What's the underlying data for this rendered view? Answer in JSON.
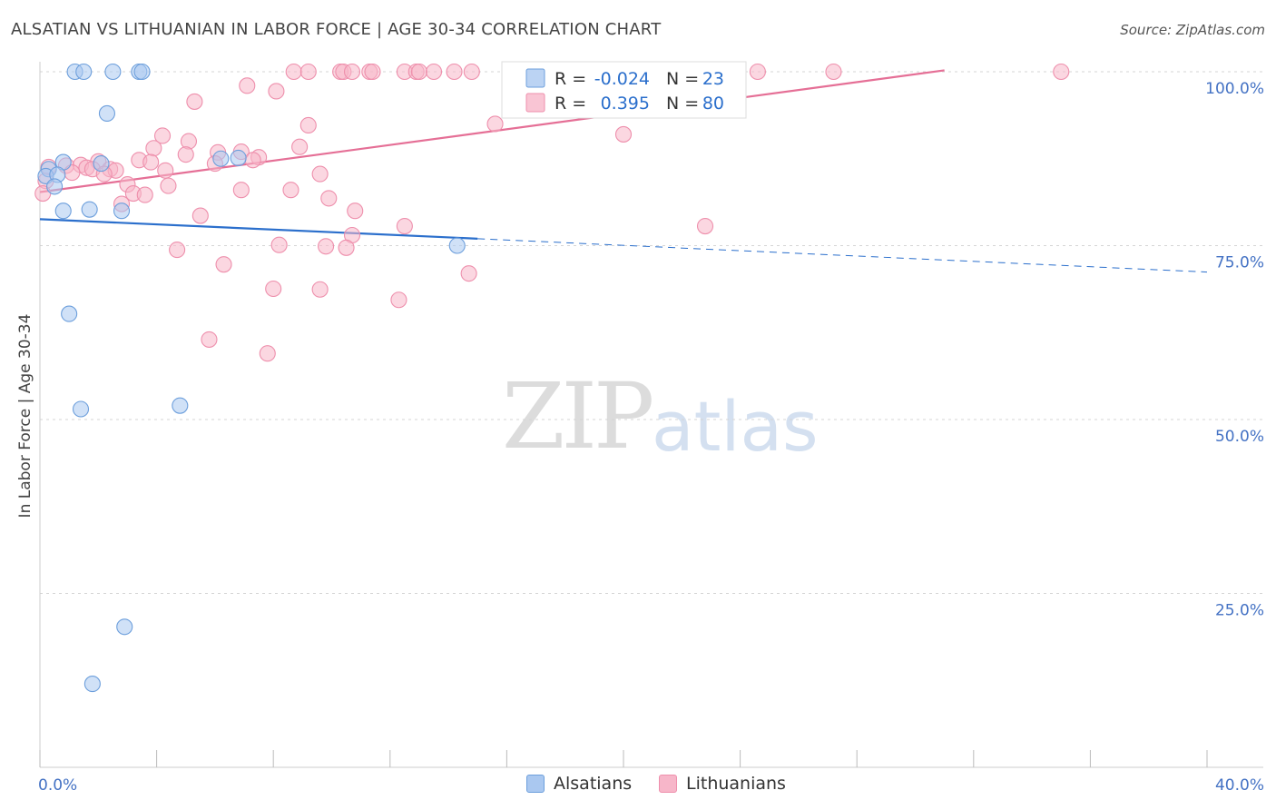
{
  "title": "ALSATIAN VS LITHUANIAN IN LABOR FORCE | AGE 30-34 CORRELATION CHART",
  "source": "Source: ZipAtlas.com",
  "watermark": {
    "zip": "ZIP",
    "atlas": "atlas"
  },
  "colors": {
    "blue_fill": "#aac8f0",
    "blue_stroke": "#6d9fdc",
    "blue_line": "#2b6fcc",
    "pink_fill": "#f7b6c9",
    "pink_stroke": "#ee8fac",
    "pink_line": "#e56f96",
    "tick_text": "#4472c4",
    "grid": "#d5d5d5"
  },
  "legend": {
    "rows": [
      {
        "r_label": "R =",
        "r_value": "-0.024",
        "n_label": "N =",
        "n_value": "23"
      },
      {
        "r_label": "R =",
        "r_value": "0.395",
        "n_label": "N =",
        "n_value": "80"
      }
    ]
  },
  "bottom_legend": {
    "alsatians": "Alsatians",
    "lithuanians": "Lithuanians"
  },
  "chart_data": {
    "type": "scatter",
    "title": "ALSATIAN VS LITHUANIAN IN LABOR FORCE | AGE 30-34 CORRELATION CHART",
    "xlabel": "",
    "ylabel": "In Labor Force | Age 30-34",
    "xlim": [
      0,
      40
    ],
    "ylim": [
      0,
      102
    ],
    "x_tick_labels": [
      "0.0%",
      "40.0%"
    ],
    "y_ticks": [
      25,
      50,
      75,
      100
    ],
    "y_tick_labels": [
      "25.0%",
      "50.0%",
      "75.0%",
      "100.0%"
    ],
    "grid": true,
    "series": [
      {
        "name": "Alsatians",
        "r": -0.024,
        "n": 23,
        "trend": {
          "solid": [
            [
              0,
              78.8
            ],
            [
              15,
              76.0
            ]
          ],
          "dashed": [
            [
              15,
              76.0
            ],
            [
              40,
              71.2
            ]
          ]
        },
        "points": [
          [
            1.2,
            100
          ],
          [
            1.5,
            100
          ],
          [
            2.5,
            100
          ],
          [
            3.4,
            100
          ],
          [
            3.5,
            100
          ],
          [
            2.3,
            94
          ],
          [
            0.8,
            87
          ],
          [
            0.3,
            86
          ],
          [
            0.2,
            85
          ],
          [
            0.6,
            85.2
          ],
          [
            2.1,
            86.8
          ],
          [
            6.2,
            87.5
          ],
          [
            6.8,
            87.6
          ],
          [
            0.5,
            83.5
          ],
          [
            0.8,
            80
          ],
          [
            1.7,
            80.2
          ],
          [
            2.8,
            80
          ],
          [
            14.3,
            75
          ],
          [
            1.0,
            65.2
          ],
          [
            1.4,
            51.5
          ],
          [
            4.8,
            52
          ],
          [
            2.9,
            20.2
          ],
          [
            1.8,
            12
          ]
        ]
      },
      {
        "name": "Lithuanians",
        "r": 0.395,
        "n": 80,
        "trend": {
          "solid": [
            [
              0,
              82.7
            ],
            [
              31,
              100.2
            ]
          ]
        },
        "points": [
          [
            8.7,
            100
          ],
          [
            9.2,
            100
          ],
          [
            10.3,
            100
          ],
          [
            10.4,
            100
          ],
          [
            10.7,
            100
          ],
          [
            11.3,
            100
          ],
          [
            11.4,
            100
          ],
          [
            12.5,
            100
          ],
          [
            12.9,
            100
          ],
          [
            13.0,
            100
          ],
          [
            13.5,
            100
          ],
          [
            14.2,
            100
          ],
          [
            14.8,
            100
          ],
          [
            16.1,
            100
          ],
          [
            16.6,
            100
          ],
          [
            17.1,
            100
          ],
          [
            18.6,
            100
          ],
          [
            19.3,
            100
          ],
          [
            19.4,
            100
          ],
          [
            22.3,
            100
          ],
          [
            23.6,
            100
          ],
          [
            24.6,
            100
          ],
          [
            27.2,
            100
          ],
          [
            35.0,
            100
          ],
          [
            7.1,
            98
          ],
          [
            8.1,
            97.2
          ],
          [
            5.3,
            95.7
          ],
          [
            9.2,
            92.3
          ],
          [
            15.6,
            92.5
          ],
          [
            20.0,
            91
          ],
          [
            4.2,
            90.8
          ],
          [
            5.1,
            90
          ],
          [
            3.9,
            89
          ],
          [
            6.1,
            88.4
          ],
          [
            6.9,
            88.5
          ],
          [
            8.9,
            89.2
          ],
          [
            5.0,
            88.1
          ],
          [
            7.5,
            87.7
          ],
          [
            3.4,
            87.3
          ],
          [
            3.8,
            87
          ],
          [
            6.0,
            86.8
          ],
          [
            7.3,
            87.3
          ],
          [
            2.0,
            87.1
          ],
          [
            0.3,
            86.3
          ],
          [
            0.9,
            86.5
          ],
          [
            1.4,
            86.6
          ],
          [
            1.6,
            86.2
          ],
          [
            1.8,
            86
          ],
          [
            2.4,
            86
          ],
          [
            2.6,
            85.8
          ],
          [
            4.3,
            85.8
          ],
          [
            9.6,
            85.3
          ],
          [
            1.1,
            85.5
          ],
          [
            2.2,
            85.3
          ],
          [
            0.2,
            84.3
          ],
          [
            4.4,
            83.6
          ],
          [
            3.0,
            83.8
          ],
          [
            6.9,
            83
          ],
          [
            8.6,
            83
          ],
          [
            3.2,
            82.5
          ],
          [
            3.6,
            82.3
          ],
          [
            9.9,
            81.8
          ],
          [
            2.8,
            81
          ],
          [
            0.1,
            82.5
          ],
          [
            10.8,
            80
          ],
          [
            5.5,
            79.3
          ],
          [
            12.5,
            77.8
          ],
          [
            22.8,
            77.8
          ],
          [
            10.7,
            76.5
          ],
          [
            8.2,
            75.1
          ],
          [
            9.8,
            74.9
          ],
          [
            10.5,
            74.7
          ],
          [
            4.7,
            74.4
          ],
          [
            6.3,
            72.3
          ],
          [
            14.7,
            71
          ],
          [
            8.0,
            68.8
          ],
          [
            9.6,
            68.7
          ],
          [
            12.3,
            67.2
          ],
          [
            5.8,
            61.5
          ],
          [
            7.8,
            59.5
          ]
        ]
      }
    ]
  }
}
